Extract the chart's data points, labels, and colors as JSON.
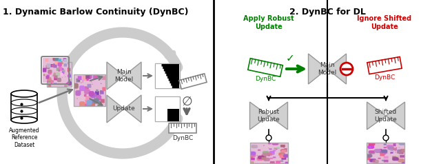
{
  "title1": "1. Dynamic Barlow Continuity (DynBC)",
  "title2": "2. DynBC for DL",
  "label_aug": "Augmented\nReference\nDataset",
  "label_main": "Main\nModel",
  "label_update": "Update",
  "label_dynbc": "DynBC",
  "label_apply": "Apply Robust\nUpdate",
  "label_ignore": "Ignore Shifted\nUpdate",
  "label_robust": "Robust\nUpdate",
  "label_shifted": "Shifted\nUpdate",
  "bg_color": "#ffffff",
  "gray_light": "#cccccc",
  "gray_mid": "#aaaaaa",
  "gray_dark": "#666666",
  "box_gray": "#d0d0d0",
  "divider_color": "#000000",
  "green_color": "#008000",
  "red_color": "#cc0000",
  "black": "#000000"
}
